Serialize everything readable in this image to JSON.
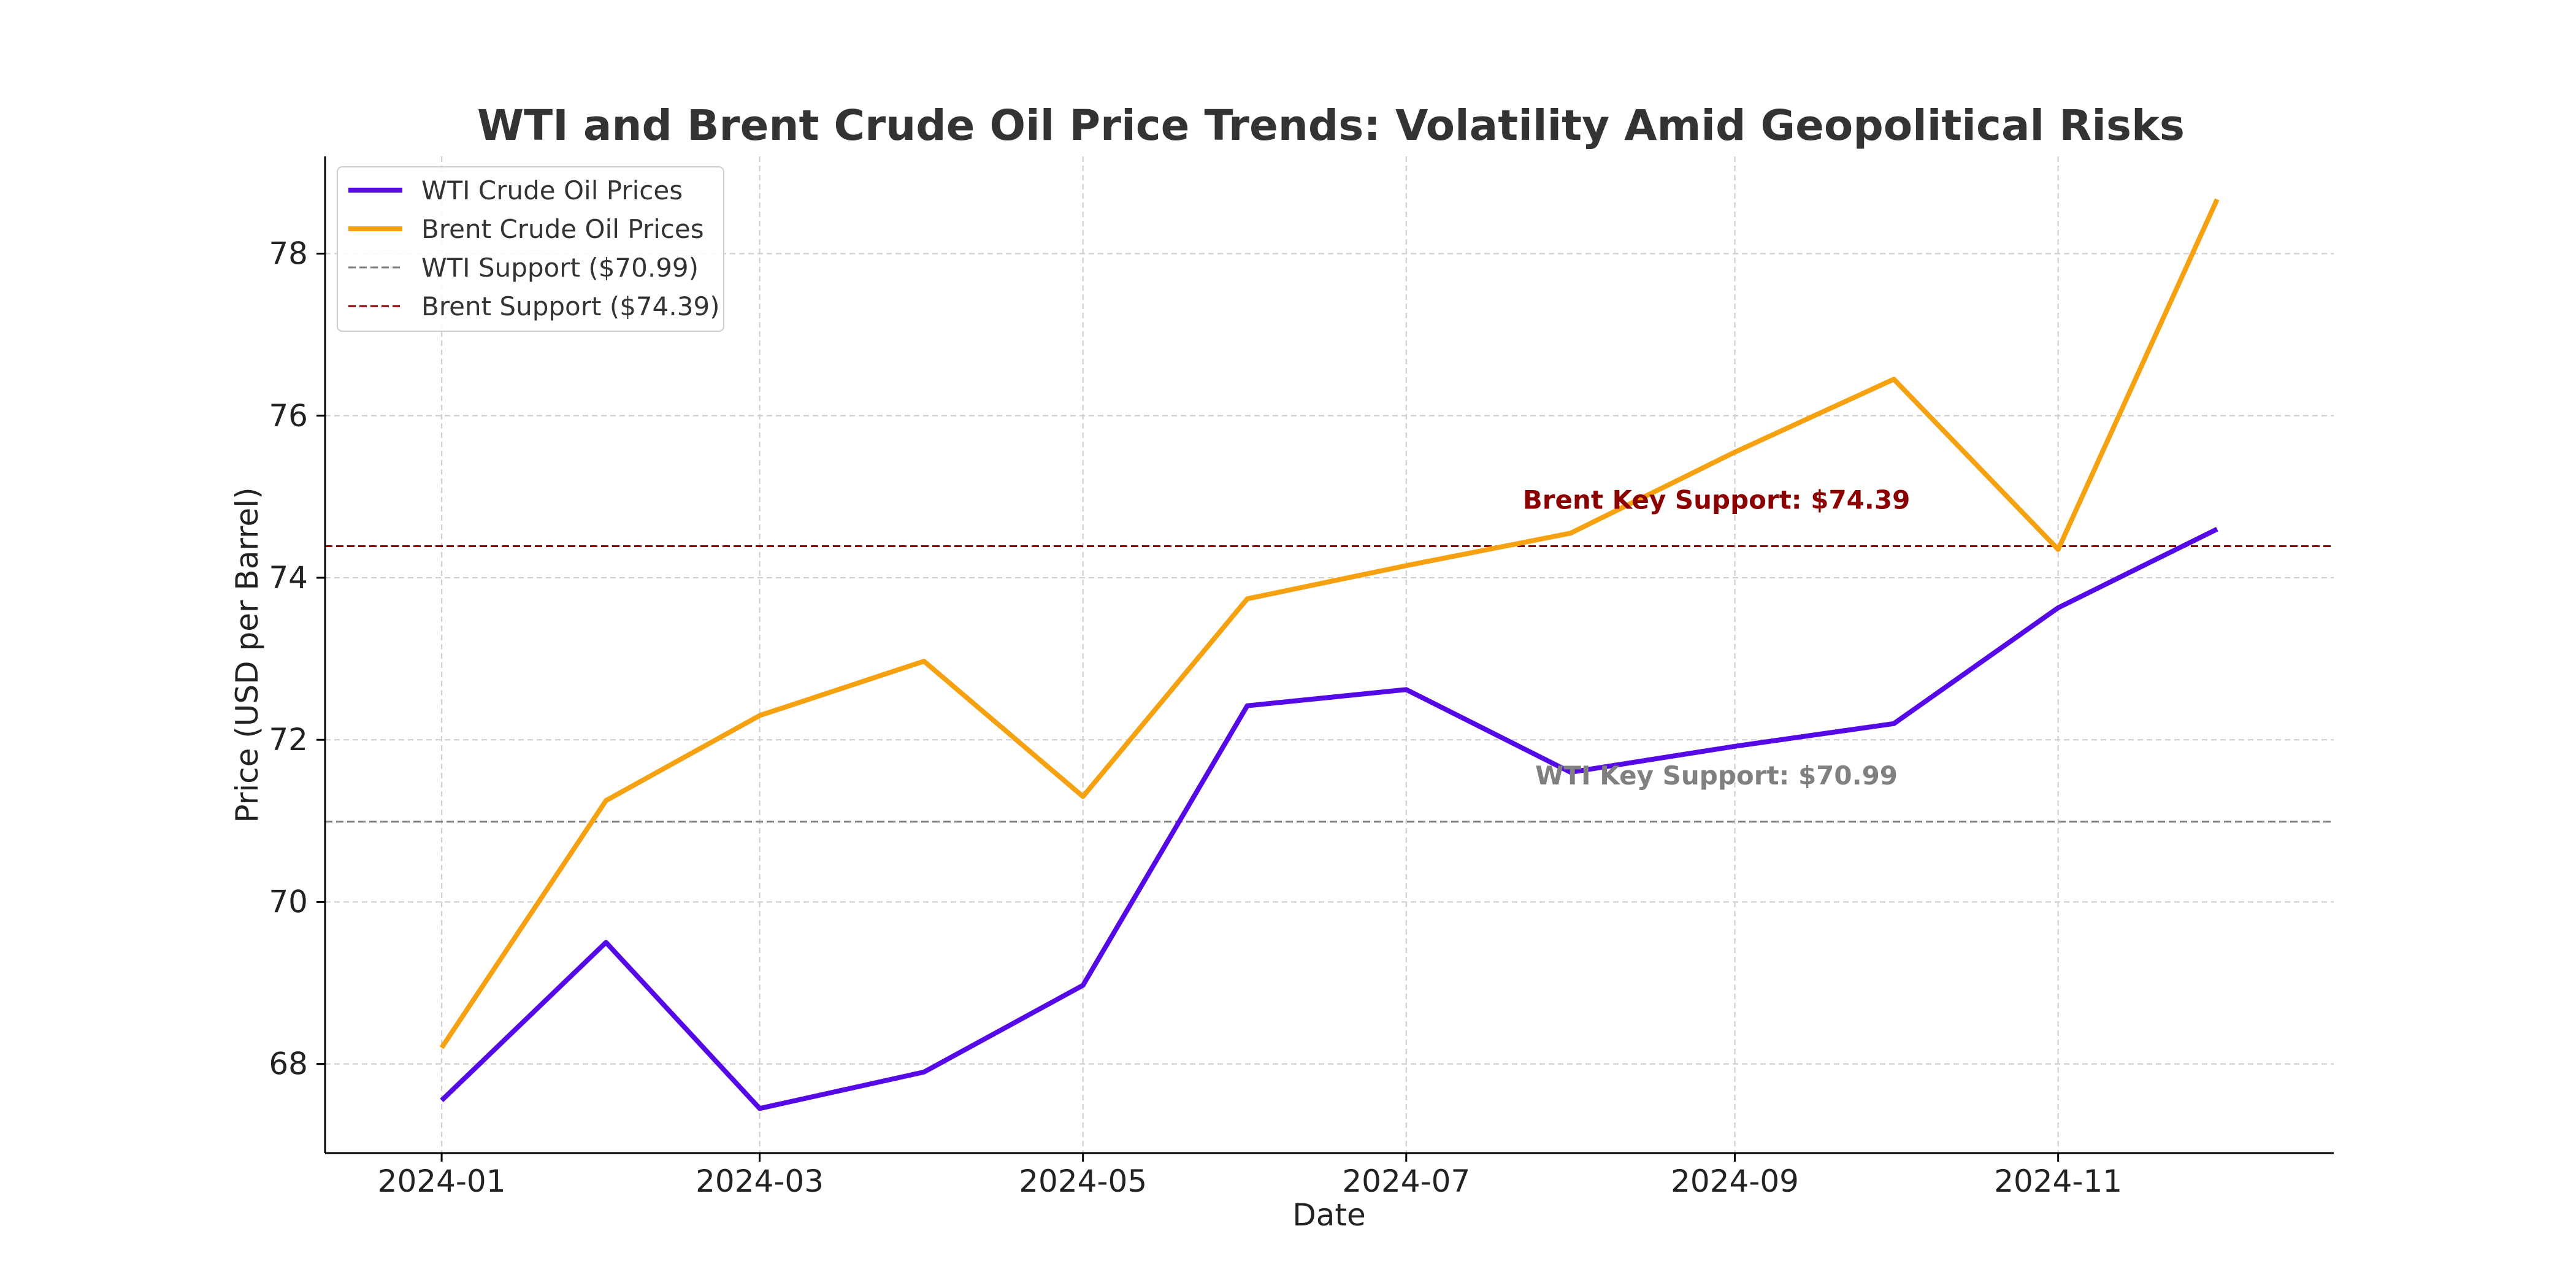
{
  "chart_data": {
    "type": "line",
    "title": "WTI and Brent Crude Oil Price Trends: Volatility Amid Geopolitical Risks",
    "xlabel": "Date",
    "ylabel": "Price (USD per Barrel)",
    "x": [
      "2024-01-01",
      "2024-02-01",
      "2024-03-01",
      "2024-04-01",
      "2024-05-01",
      "2024-06-01",
      "2024-07-01",
      "2024-08-01",
      "2024-09-01",
      "2024-10-01",
      "2024-11-01",
      "2024-12-01"
    ],
    "x_tick_labels": [
      "2024-01",
      "2024-03",
      "2024-05",
      "2024-07",
      "2024-09",
      "2024-11"
    ],
    "xlim": [
      "2023-12-10",
      "2024-12-23"
    ],
    "ylim": [
      66.9,
      79.2
    ],
    "y_ticks": [
      68,
      70,
      72,
      74,
      76,
      78
    ],
    "grid": true,
    "legend_position": "top-left",
    "series": [
      {
        "name": "WTI Crude Oil Prices",
        "color": "#5509e6",
        "style": "solid",
        "values": [
          67.55,
          69.5,
          67.45,
          67.9,
          68.97,
          72.42,
          72.62,
          71.6,
          71.92,
          72.2,
          73.63,
          74.6
        ]
      },
      {
        "name": "Brent Crude Oil Prices",
        "color": "#f5a110",
        "style": "solid",
        "values": [
          68.2,
          71.25,
          72.3,
          72.97,
          71.3,
          73.74,
          74.15,
          74.55,
          75.55,
          76.45,
          74.35,
          78.67
        ]
      }
    ],
    "reference_lines": [
      {
        "name": "WTI Support ($70.99)",
        "value": 70.99,
        "color": "#808080",
        "style": "dashed"
      },
      {
        "name": "Brent Support ($74.39)",
        "value": 74.39,
        "color": "#8b0000",
        "style": "dashed"
      }
    ],
    "annotations": [
      {
        "text": "Brent Key Support: $74.39",
        "x": "2024-09-01",
        "y": 74.85,
        "color": "#8b0000"
      },
      {
        "text": "WTI Key Support: $70.99",
        "x": "2024-09-01",
        "y": 71.45,
        "color": "#808080"
      }
    ]
  }
}
